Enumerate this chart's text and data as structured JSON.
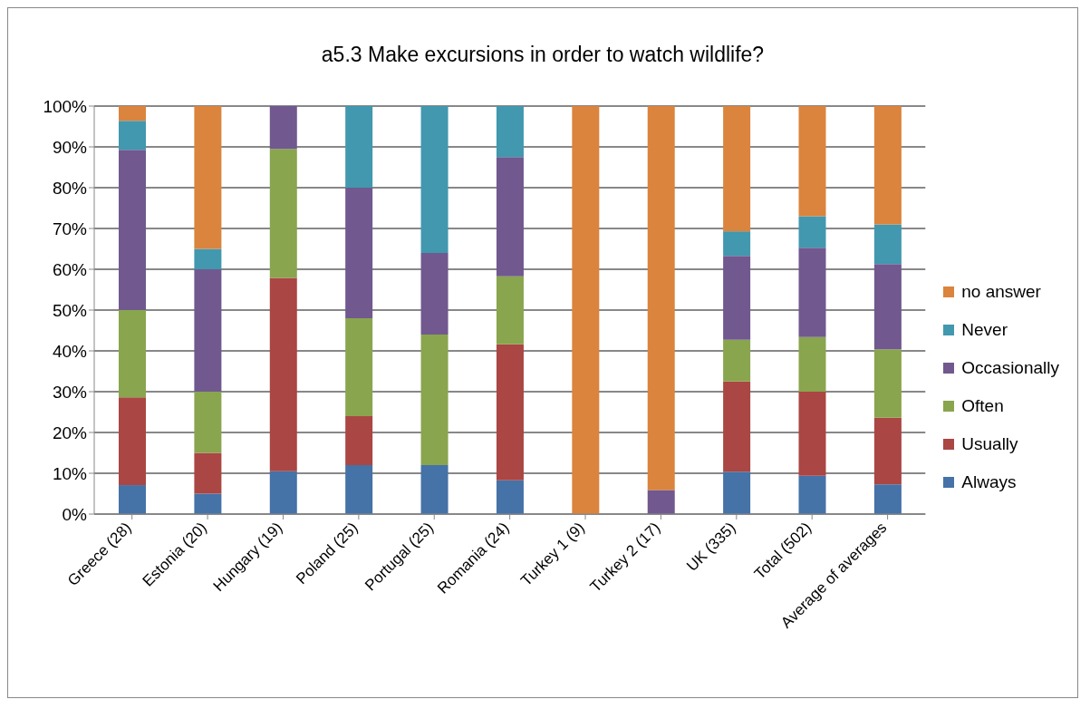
{
  "chart_data": {
    "type": "bar",
    "title": "a5.3 Make excursions in order to watch wildlife?",
    "stacked": true,
    "grid": "y",
    "legend": "right",
    "categories": [
      "Greece (28)",
      "Estonia (20)",
      "Hungary (19)",
      "Poland (25)",
      "Portugal (25)",
      "Romania (24)",
      "Turkey 1 (9)",
      "Turkey 2 (17)",
      "UK (335)",
      "Total (502)",
      "Average of averages"
    ],
    "ylim": [
      0,
      100
    ],
    "yticks": [
      {
        "value": 0,
        "label": "0%"
      },
      {
        "value": 10,
        "label": "10%"
      },
      {
        "value": 20,
        "label": "20%"
      },
      {
        "value": 30,
        "label": "30%"
      },
      {
        "value": 40,
        "label": "40%"
      },
      {
        "value": 50,
        "label": "50%"
      },
      {
        "value": 60,
        "label": "60%"
      },
      {
        "value": 70,
        "label": "70%"
      },
      {
        "value": 80,
        "label": "80%"
      },
      {
        "value": 90,
        "label": "90%"
      },
      {
        "value": 100,
        "label": "100%"
      }
    ],
    "series": [
      {
        "name": "Always",
        "color": "#4572a7",
        "values": [
          7.1,
          5,
          10.5,
          12,
          12,
          8.3,
          0,
          0,
          10.4,
          9.4,
          7.3
        ]
      },
      {
        "name": "Usually",
        "color": "#aa4643",
        "values": [
          21.5,
          10,
          47.4,
          12,
          0,
          33.3,
          0,
          0,
          22.1,
          20.6,
          16.3
        ]
      },
      {
        "name": "Often",
        "color": "#89a54e",
        "values": [
          21.4,
          15,
          31.6,
          24,
          32,
          16.7,
          0,
          0,
          10.2,
          13.4,
          16.8
        ]
      },
      {
        "name": "Occasionally",
        "color": "#71588f",
        "values": [
          39.3,
          30,
          10.5,
          32,
          20,
          29.2,
          0,
          5.9,
          20.6,
          21.9,
          20.9
        ]
      },
      {
        "name": "Never",
        "color": "#4198af",
        "values": [
          7.1,
          5,
          0,
          20,
          36,
          12.5,
          0,
          0,
          6,
          7.7,
          9.7
        ]
      },
      {
        "name": "no answer",
        "color": "#db843d",
        "values": [
          3.6,
          35,
          0,
          0,
          0,
          0,
          100,
          94.1,
          30.7,
          27,
          29
        ]
      }
    ]
  }
}
